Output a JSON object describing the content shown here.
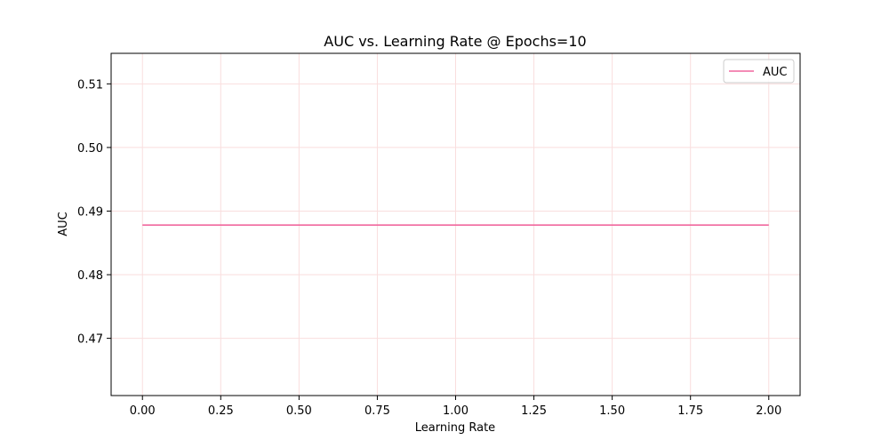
{
  "chart_data": {
    "type": "line",
    "title": "AUC vs. Learning Rate @ Epochs=10",
    "xlabel": "Learning Rate",
    "ylabel": "AUC",
    "x": [
      0.0,
      2.0
    ],
    "series": [
      {
        "name": "AUC",
        "color": "#f0679e",
        "values": [
          0.4878,
          0.4878
        ]
      }
    ],
    "xlim": [
      -0.1,
      2.1
    ],
    "ylim": [
      0.461,
      0.5148
    ],
    "xticks": [
      0.0,
      0.25,
      0.5,
      0.75,
      1.0,
      1.25,
      1.5,
      1.75,
      2.0
    ],
    "xtick_labels": [
      "0.00",
      "0.25",
      "0.50",
      "0.75",
      "1.00",
      "1.25",
      "1.50",
      "1.75",
      "2.00"
    ],
    "yticks": [
      0.47,
      0.48,
      0.49,
      0.5,
      0.51
    ],
    "ytick_labels": [
      "0.47",
      "0.48",
      "0.49",
      "0.50",
      "0.51"
    ],
    "grid": true,
    "grid_color": "#f9dede",
    "legend_position": "top-right"
  }
}
